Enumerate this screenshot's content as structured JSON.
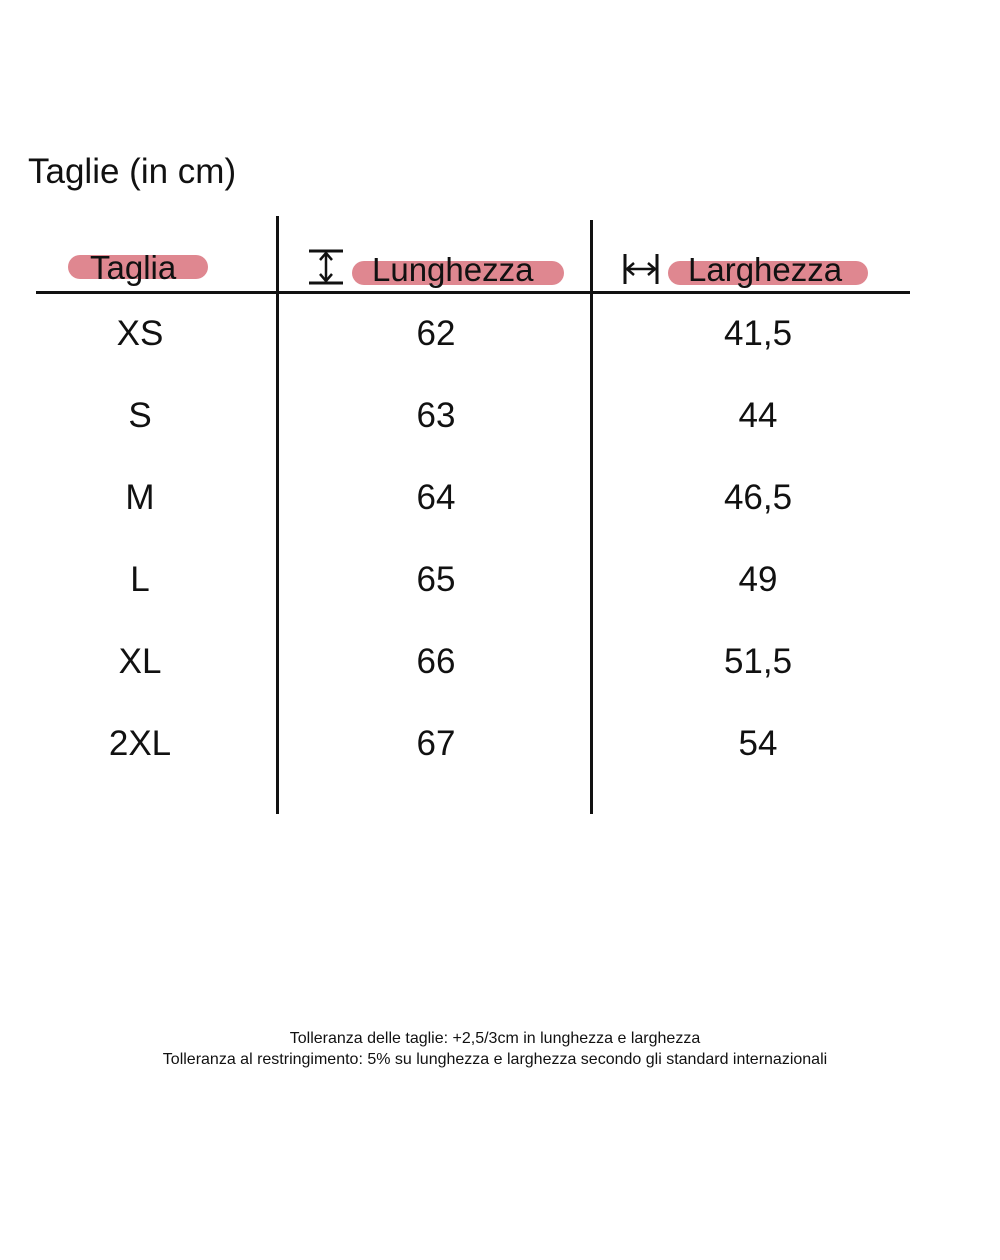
{
  "title": "Taglie (in cm)",
  "columns": [
    {
      "label": "Taglia",
      "icon": ""
    },
    {
      "label": "Lunghezza",
      "icon": "vertical-length-arrow-icon"
    },
    {
      "label": "Larghezza",
      "icon": "horizontal-width-arrow-icon"
    }
  ],
  "highlight_color": "#df8790",
  "rows": [
    {
      "size": "XS",
      "length": "62",
      "width": "41,5"
    },
    {
      "size": "S",
      "length": "63",
      "width": "44"
    },
    {
      "size": "M",
      "length": "64",
      "width": "46,5"
    },
    {
      "size": "L",
      "length": "65",
      "width": "49"
    },
    {
      "size": "XL",
      "length": "66",
      "width": "51,5"
    },
    {
      "size": "2XL",
      "length": "67",
      "width": "54"
    }
  ],
  "notes": [
    "Tolleranza delle taglie: +2,5/3cm in lunghezza e larghezza",
    "Tolleranza al restringimento: 5% su lunghezza e larghezza secondo gli standard internazionali"
  ]
}
